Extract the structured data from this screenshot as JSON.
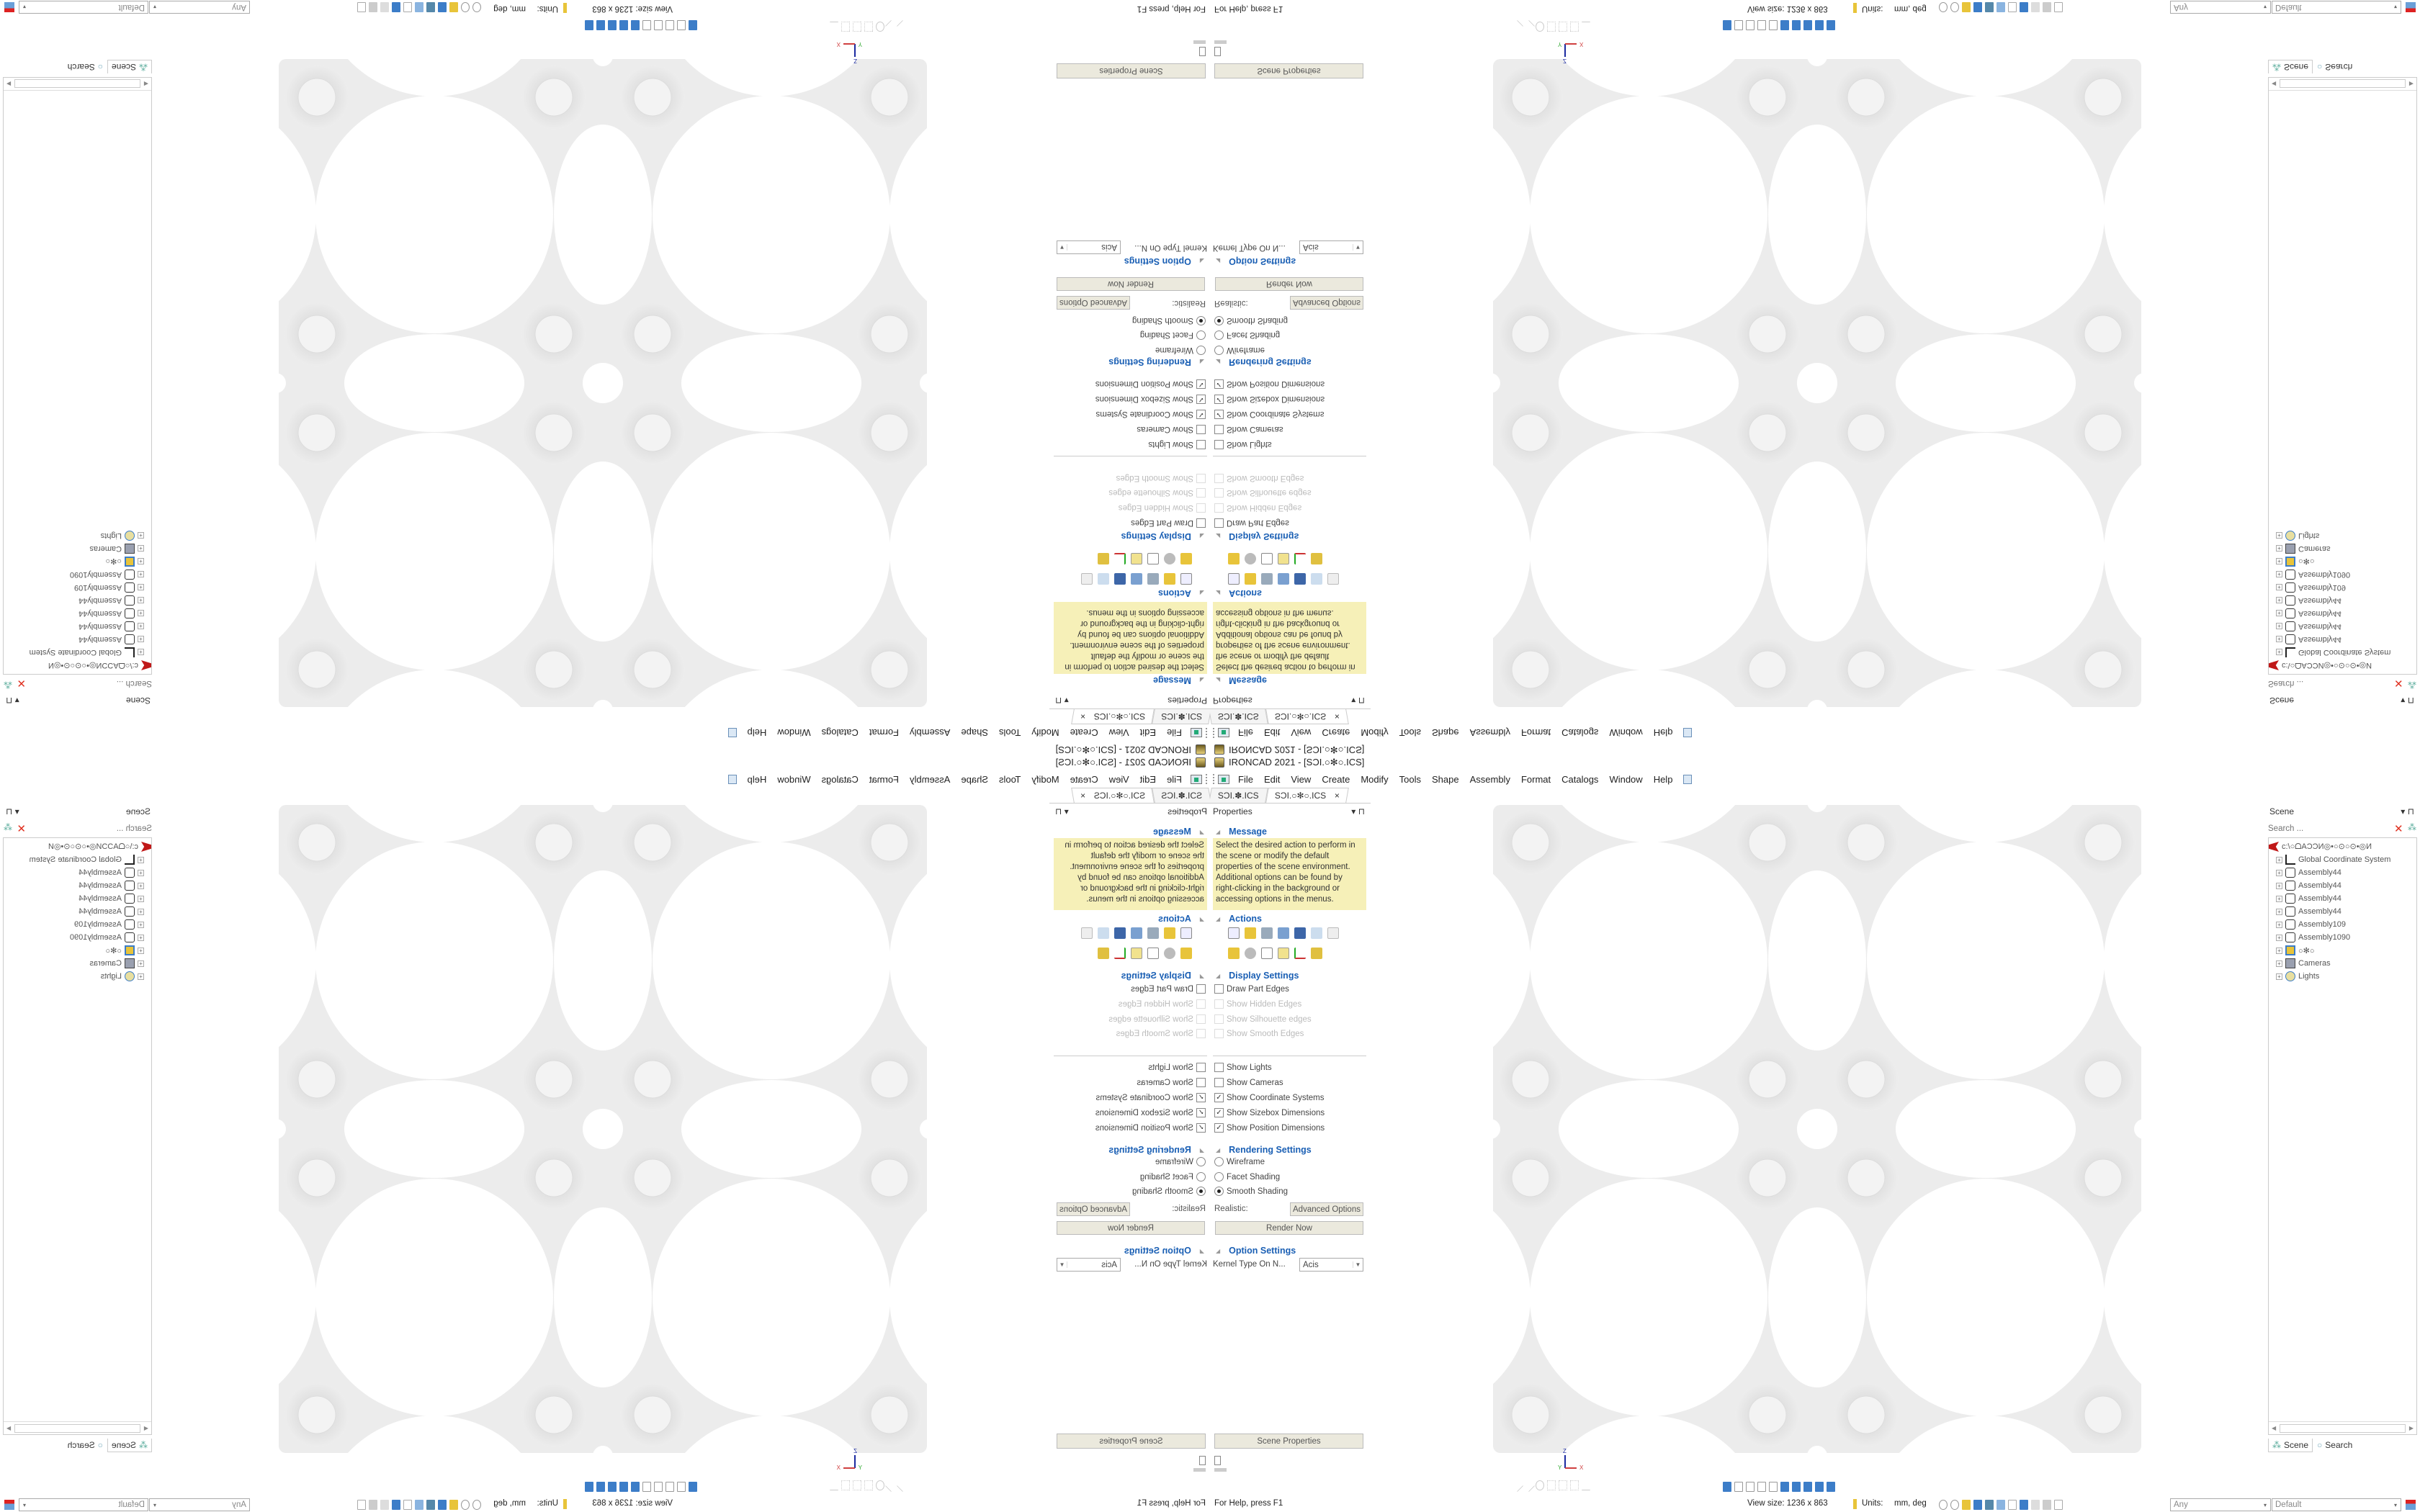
{
  "window": {
    "title": "IRONCAD 2021 - [SƆI.○✻○.ICS]"
  },
  "menu": {
    "items": [
      "File",
      "Edit",
      "View",
      "Create",
      "Modify",
      "Tools",
      "Shape",
      "Assembly",
      "Format",
      "Catalogs",
      "Window",
      "Help"
    ]
  },
  "tabs": [
    {
      "label": "SƆI.✽.ICS",
      "active": false
    },
    {
      "label": "SƆI.○✻○.ICS",
      "active": true,
      "close": "×"
    }
  ],
  "properties": {
    "title": "Properties",
    "pin": "▾  ⊓",
    "message": {
      "heading": "Message",
      "text": "Select the desired action to perform in the scene or modify the default properties of the scene environment. Additional options can be found by right-clicking in the background or accessing options in the menus."
    },
    "actions": {
      "heading": "Actions"
    },
    "display": {
      "heading": "Display Settings",
      "items": [
        {
          "label": "Draw Part Edges",
          "checked": false,
          "enabled": true
        },
        {
          "label": "Show Hidden Edges",
          "checked": false,
          "enabled": false
        },
        {
          "label": "Show Silhouette edges",
          "checked": false,
          "enabled": false
        },
        {
          "label": "Show Smooth Edges",
          "checked": false,
          "enabled": false
        },
        {
          "label": "Show Lights",
          "checked": false,
          "enabled": true
        },
        {
          "label": "Show Cameras",
          "checked": false,
          "enabled": true
        },
        {
          "label": "Show Coordinate Systems",
          "checked": true,
          "enabled": true
        },
        {
          "label": "Show Sizebox Dimensions",
          "checked": true,
          "enabled": true
        },
        {
          "label": "Show Position Dimensions",
          "checked": true,
          "enabled": true
        }
      ]
    },
    "rendering": {
      "heading": "Rendering Settings",
      "options": [
        "Wireframe",
        "Facet Shading",
        "Smooth Shading"
      ],
      "selected": "Smooth Shading",
      "realistic_label": "Realistic:",
      "advanced": "Advanced Options",
      "render_now": "Render Now"
    },
    "option": {
      "heading": "Option Settings",
      "kernel_label": "Kernel Type On N...",
      "kernel_value": "Acis"
    },
    "scene_properties": "Scene Properties"
  },
  "scene": {
    "title": "Scene",
    "search_placeholder": "Search ...",
    "tree": [
      {
        "label": "c:\\○ᗝAƆƆИ◎•○⊙○⊙•◎И",
        "icon": "scene-root-icon"
      },
      {
        "label": "Global Coordinate System",
        "icon": "coordinate-system-icon"
      },
      {
        "label": "Assembly44",
        "icon": "assembly-icon"
      },
      {
        "label": "Assembly44",
        "icon": "assembly-icon"
      },
      {
        "label": "Assembly44",
        "icon": "assembly-icon"
      },
      {
        "label": "Assembly44",
        "icon": "assembly-icon"
      },
      {
        "label": "Assembly109",
        "icon": "assembly-icon"
      },
      {
        "label": "Assembly1090",
        "icon": "assembly-icon"
      },
      {
        "label": "○✻○",
        "icon": "part-icon"
      },
      {
        "label": "Cameras",
        "icon": "camera-icon"
      },
      {
        "label": "Lights",
        "icon": "light-icon"
      }
    ],
    "bottom_tabs": [
      "Scene",
      "Search"
    ]
  },
  "triad": {
    "z": "Z",
    "y": "Y",
    "x": "X"
  },
  "status": {
    "help": "For Help, press F1",
    "view_size": "View size: 1236 x  863",
    "units_label": "Units:",
    "units_value": "mm, deg",
    "filter": "Any",
    "style": "Default"
  },
  "colors": {
    "accent": "#1a5fb4",
    "message_bg": "#f6f0b8",
    "button_bg": "#ebe9dd",
    "part": "#ececec"
  }
}
